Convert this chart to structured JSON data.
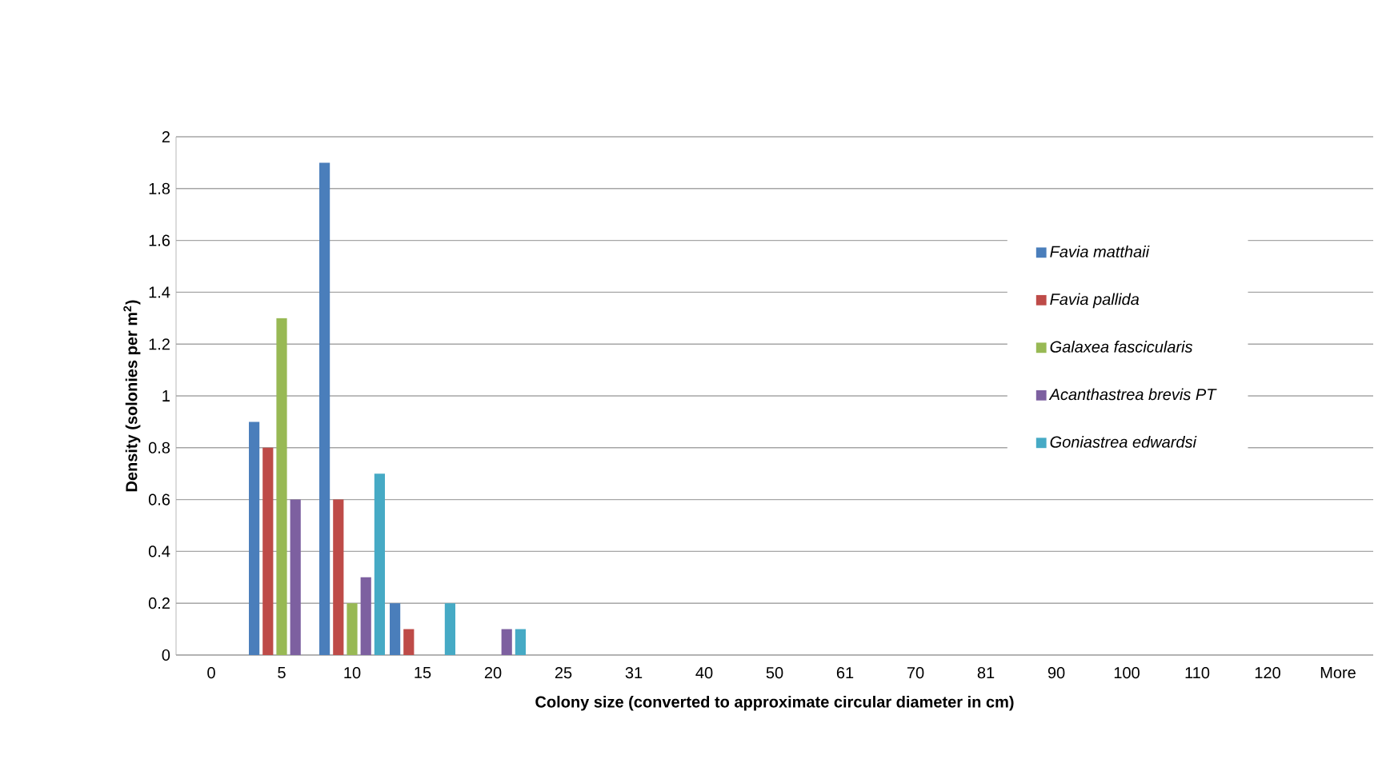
{
  "chart_data": {
    "type": "bar",
    "xlabel": "Colony size (converted to approximate circular diameter in cm)",
    "ylabel": "Density (solonies per m$^{2}$)",
    "categories": [
      "0",
      "5",
      "10",
      "15",
      "20",
      "25",
      "31",
      "40",
      "50",
      "61",
      "70",
      "81",
      "90",
      "100",
      "110",
      "120",
      "More"
    ],
    "series": [
      {
        "name": "Favia matthaii",
        "color": "#4a7ebb",
        "values": [
          0,
          0.9,
          1.9,
          0.2,
          0,
          0,
          0,
          0,
          0,
          0,
          0,
          0,
          0,
          0,
          0,
          0,
          0
        ]
      },
      {
        "name": "Favia pallida",
        "color": "#be4b48",
        "values": [
          0,
          0.8,
          0.6,
          0.1,
          0,
          0,
          0,
          0,
          0,
          0,
          0,
          0,
          0,
          0,
          0,
          0,
          0
        ]
      },
      {
        "name": "Galaxea fascicularis",
        "color": "#98b954",
        "values": [
          0,
          1.3,
          0.2,
          0,
          0,
          0,
          0,
          0,
          0,
          0,
          0,
          0,
          0,
          0,
          0,
          0,
          0
        ]
      },
      {
        "name": "Acanthastrea brevis PT",
        "color": "#7d60a0",
        "values": [
          0,
          0.6,
          0.3,
          0,
          0.1,
          0,
          0,
          0,
          0,
          0,
          0,
          0,
          0,
          0,
          0,
          0,
          0
        ]
      },
      {
        "name": "Goniastrea edwardsi",
        "color": "#46aac5",
        "values": [
          0,
          0,
          0.7,
          0.2,
          0.1,
          0,
          0,
          0,
          0,
          0,
          0,
          0,
          0,
          0,
          0,
          0,
          0
        ]
      }
    ],
    "ylim": [
      0,
      2
    ],
    "yticks": [
      0,
      0.2,
      0.4,
      0.6,
      0.8,
      1,
      1.2,
      1.4,
      1.6,
      1.8,
      2
    ],
    "grid": "y",
    "legend": "right"
  }
}
